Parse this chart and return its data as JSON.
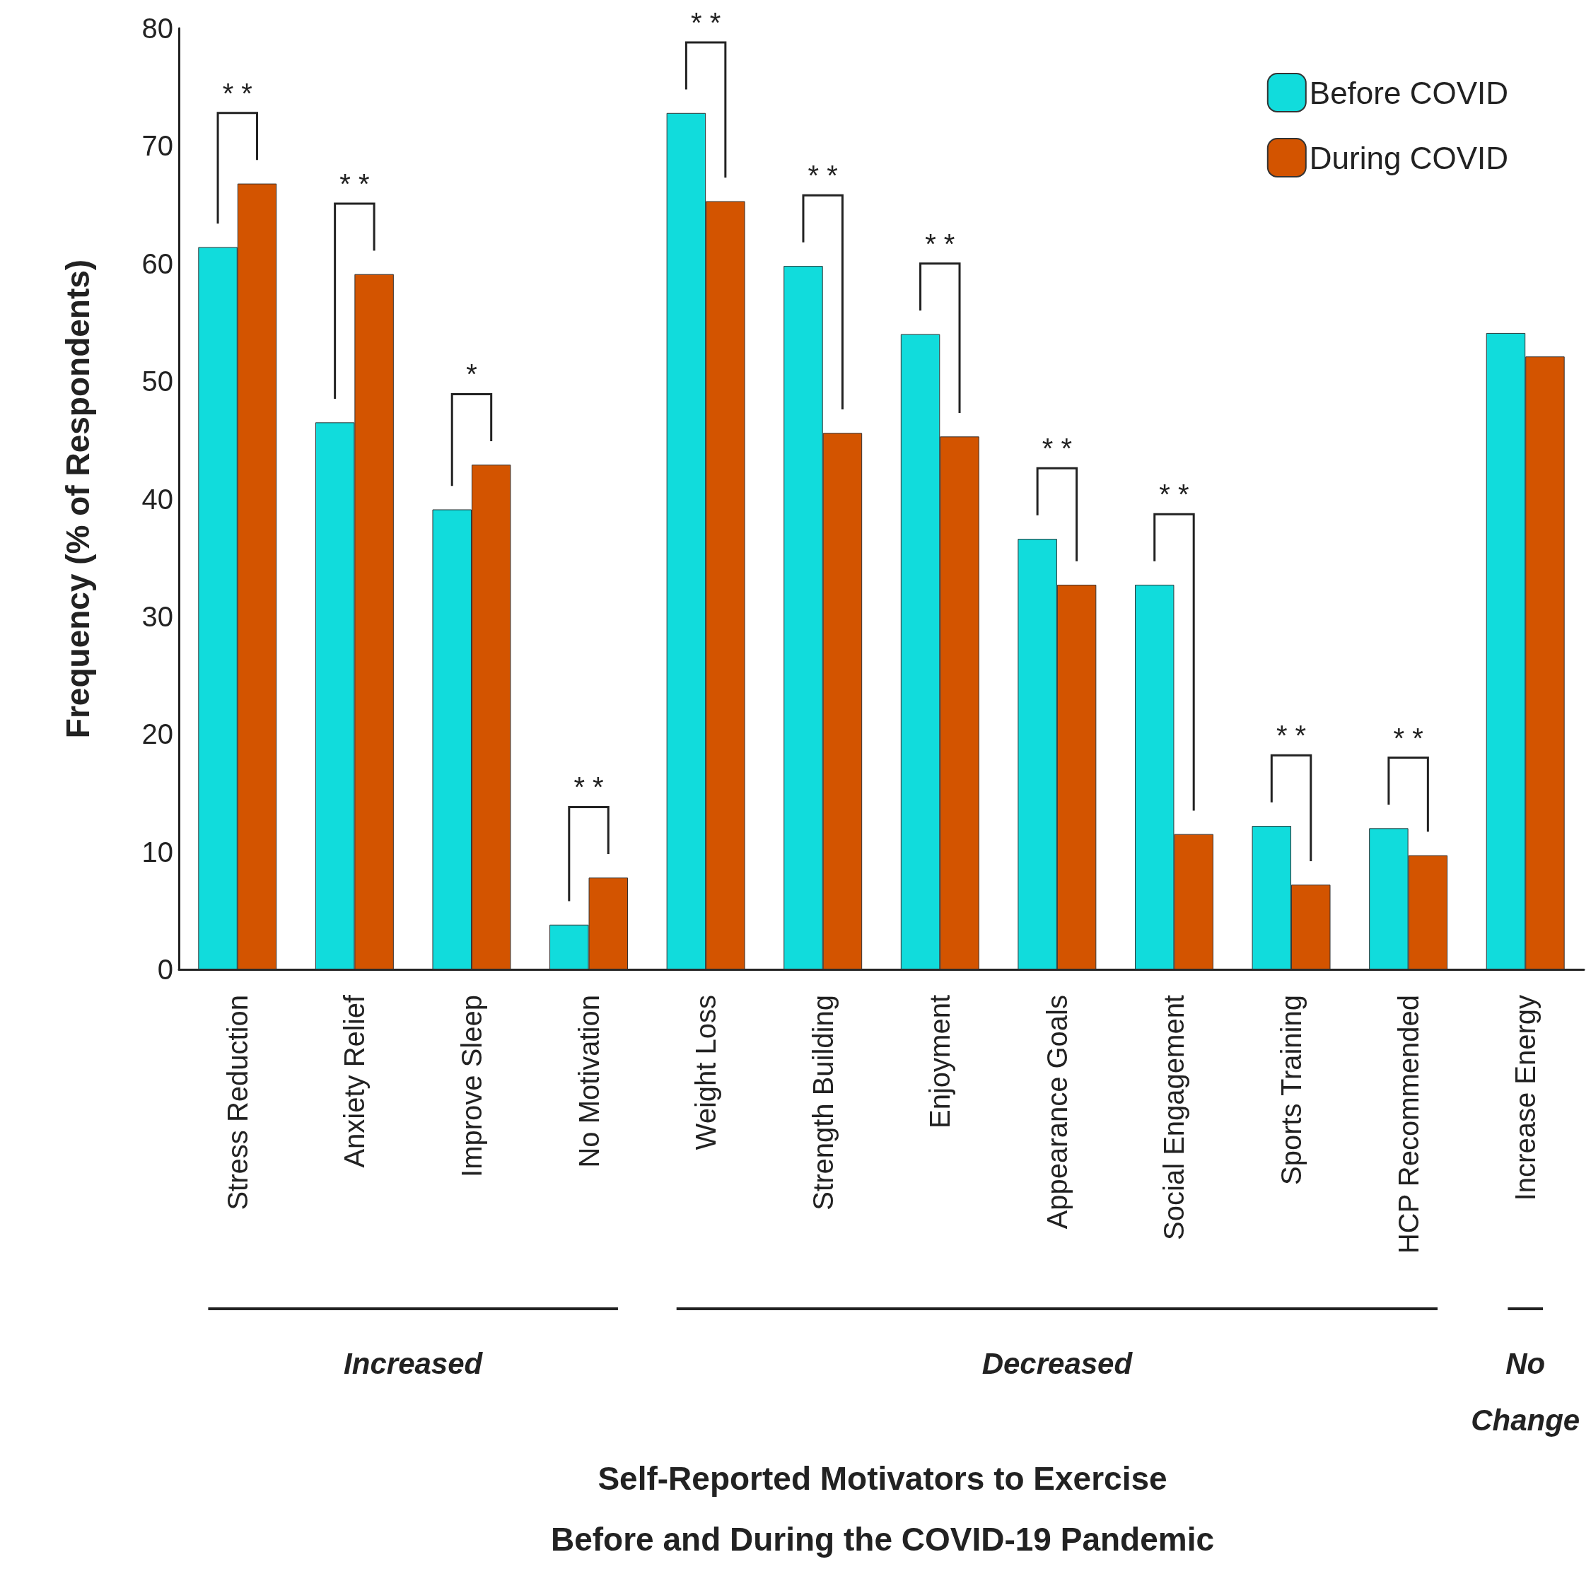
{
  "chart_data": {
    "type": "bar",
    "ylabel": "Frequency (% of Respondents)",
    "categories": [
      "Stress Reduction",
      "Anxiety Relief",
      "Improve Sleep",
      "No Motivation",
      "Weight Loss",
      "Strength Building",
      "Enjoyment",
      "Appearance Goals",
      "Social Engagement",
      "Sports Training",
      "HCP Recommended",
      "Increase Energy"
    ],
    "series": [
      {
        "name": "Before COVID",
        "color": "#11dcdc",
        "values": [
          61.4,
          46.5,
          39.1,
          3.8,
          72.8,
          59.8,
          54.0,
          36.6,
          32.7,
          12.2,
          12.0,
          54.1
        ]
      },
      {
        "name": "During COVID",
        "color": "#d35400",
        "values": [
          66.8,
          59.1,
          42.9,
          7.8,
          65.3,
          45.6,
          45.3,
          32.7,
          11.5,
          7.2,
          9.7,
          52.1
        ]
      }
    ],
    "ylim": [
      0,
      80
    ],
    "yticks": [
      0,
      10,
      20,
      30,
      40,
      50,
      60,
      70,
      80
    ],
    "grid": false,
    "legend": "top right",
    "annotations": [
      "* *",
      "* *",
      "*",
      "* *",
      "* *",
      "* *",
      "* *",
      "* *",
      "* *",
      "* *",
      "* *",
      "Increased",
      "Decreased",
      "No\nChange",
      "Self-Reported Motivators to Exercise\nBefore and During the COVID-19 Pandemic"
    ]
  }
}
